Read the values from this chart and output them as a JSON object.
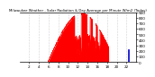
{
  "title": "Milwaukee Weather - Solar Radiation & Day Average per Minute W/m2 (Today)",
  "bg_color": "#ffffff",
  "plot_bg_color": "#ffffff",
  "grid_color": "#aaaaaa",
  "area_color": "#ff0000",
  "line_color": "#ff0000",
  "blue_line_color": "#0000cc",
  "ylim": [
    0,
    900
  ],
  "xlim": [
    0,
    1440
  ],
  "yticks": [
    0,
    100,
    200,
    300,
    400,
    500,
    600,
    700,
    800,
    900
  ],
  "xtick_positions": [
    120,
    240,
    360,
    480,
    600,
    720,
    840,
    960,
    1080,
    1200,
    1320
  ],
  "xtick_labels": [
    "2",
    "4",
    "6",
    "8",
    "10",
    "12",
    "14",
    "16",
    "18",
    "20",
    "22"
  ],
  "blue_line_x": 1350,
  "blue_line_height": 220,
  "sunrise": 350,
  "peak_minute": 760,
  "sunset": 1180,
  "peak_value": 870,
  "cloud_dips": [
    {
      "start": 680,
      "end": 760,
      "factor": 0.15
    },
    {
      "start": 830,
      "end": 870,
      "factor": 0.25
    },
    {
      "start": 900,
      "end": 940,
      "factor": 0.3
    },
    {
      "start": 960,
      "end": 990,
      "factor": 0.2
    }
  ]
}
